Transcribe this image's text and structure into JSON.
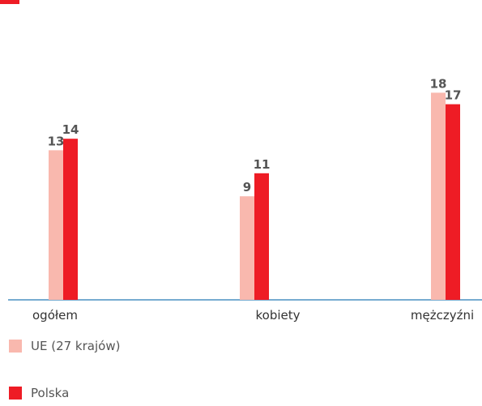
{
  "chart_data": {
    "type": "bar",
    "categories": [
      "ogółem",
      "kobiety",
      "mężczyźni"
    ],
    "series": [
      {
        "name": "UE (27 krajów)",
        "values": [
          13,
          9,
          18
        ],
        "color": "#f9b8ae"
      },
      {
        "name": "Polska",
        "values": [
          14,
          11,
          17
        ],
        "color": "#ee1c25"
      }
    ],
    "ylim": [
      0,
      20
    ],
    "grid": false,
    "legend_position": "bottom-left",
    "axis_color": "#4a90c2",
    "accent_color": "#ee1c25"
  },
  "legend": {
    "items": [
      {
        "label": "UE (27 krajów)",
        "color": "#f9b8ae"
      },
      {
        "label": "Polska",
        "color": "#ee1c25"
      }
    ]
  }
}
